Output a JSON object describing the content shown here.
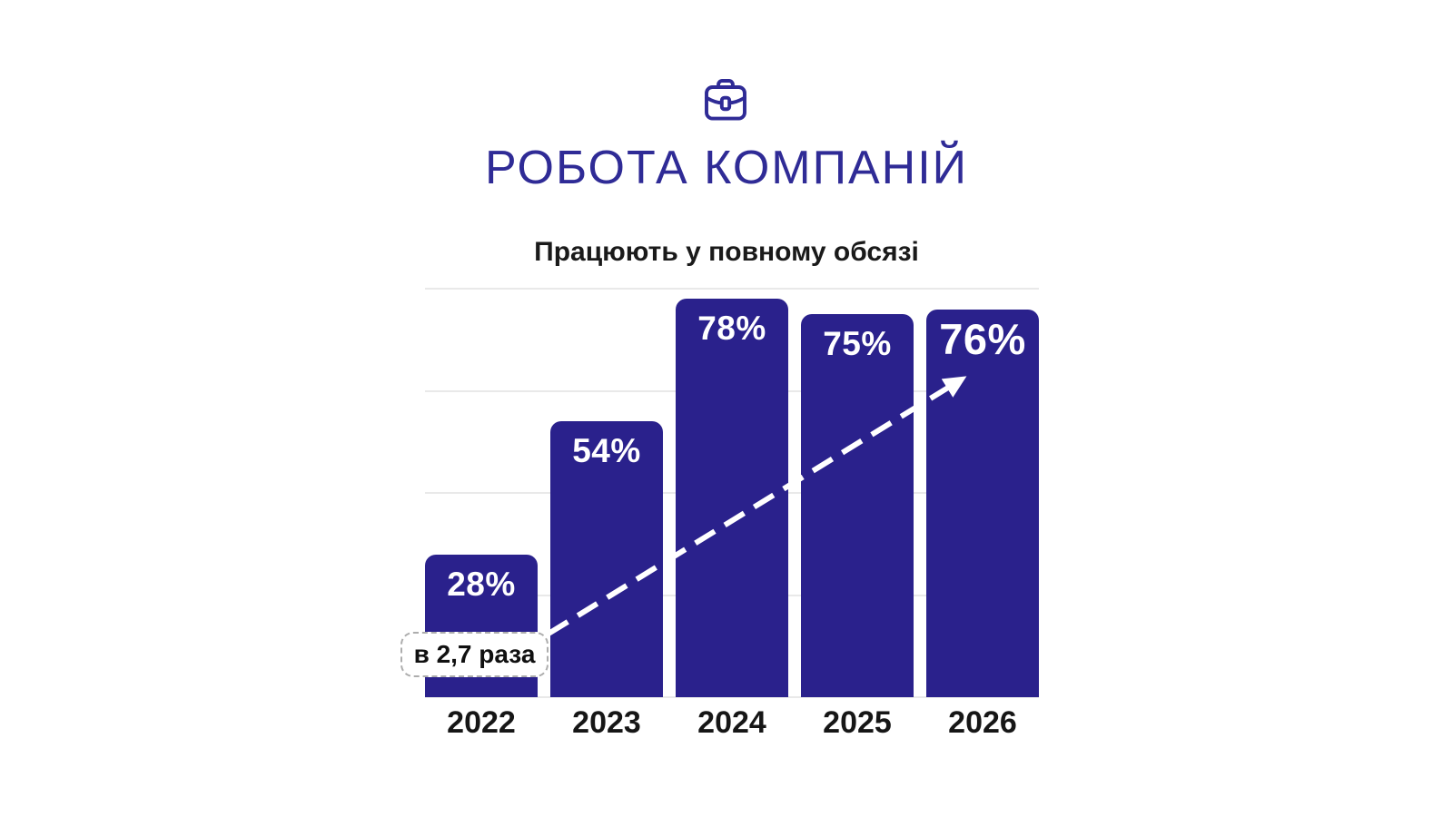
{
  "header": {
    "icon": "briefcase-icon",
    "title": "РОБОТА КОМПАНІЙ"
  },
  "chart_data": {
    "type": "bar",
    "title": "Працюють у повному обсязі",
    "categories": [
      "2022",
      "2023",
      "2024",
      "2025",
      "2026"
    ],
    "values": [
      28,
      54,
      78,
      75,
      76
    ],
    "value_labels": [
      "28%",
      "54%",
      "78%",
      "75%",
      "76%"
    ],
    "unit": "%",
    "ylim": [
      0,
      80
    ],
    "gridline_step": 20,
    "grid": true,
    "emphasized_index": 4,
    "annotation": {
      "label": "в 2,7 раза",
      "arrow_style": "dashed-white-up-right"
    },
    "colors": {
      "bar": "#2a218c",
      "title": "#2f2b96",
      "grid": "#e9e9e9",
      "axis_text": "#161616",
      "value_text": "#ffffff"
    }
  }
}
